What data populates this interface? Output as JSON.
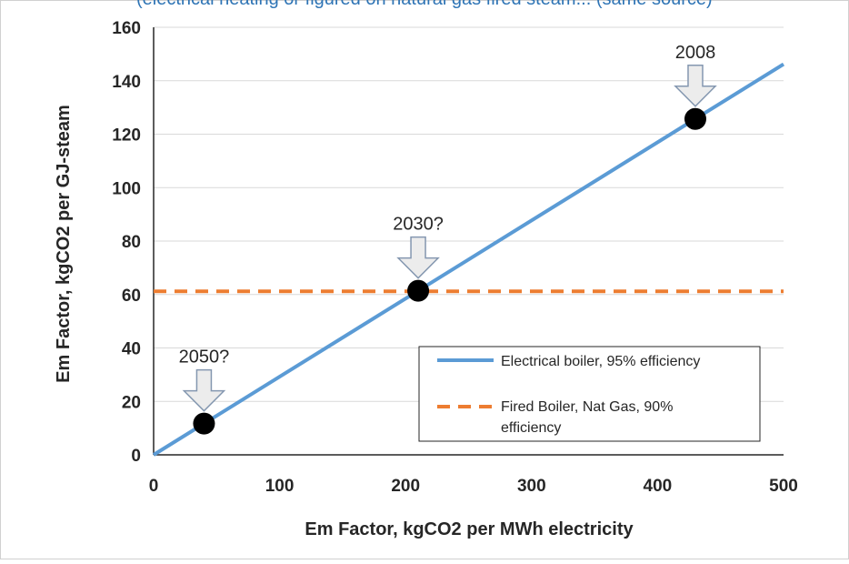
{
  "chart_data": {
    "type": "line",
    "xlabel": "Em Factor, kgCO2 per MWh electricity",
    "ylabel": "Em Factor, kgCO2 per GJ-steam",
    "xlim": [
      0,
      500
    ],
    "ylim": [
      0,
      160
    ],
    "x_ticks": [
      "0",
      "100",
      "200",
      "300",
      "400",
      "500"
    ],
    "y_ticks": [
      "0",
      "20",
      "40",
      "60",
      "80",
      "100",
      "120",
      "140",
      "160"
    ],
    "grid": "horizontal",
    "legend_position": "bottom-right",
    "series": [
      {
        "name": "Electrical boiler, 95% efficiency",
        "style": "solid",
        "color": "#5b9bd5",
        "x": [
          0,
          500
        ],
        "y": [
          0,
          146.2
        ]
      },
      {
        "name": "Fired Boiler, Nat Gas, 90% efficiency",
        "style": "dashed",
        "color": "#ed7d31",
        "x": [
          0,
          500
        ],
        "y": [
          61.2,
          61.2
        ]
      }
    ],
    "points": [
      {
        "label": "2008",
        "x": 430,
        "y": 125.7
      },
      {
        "label": "2030?",
        "x": 210,
        "y": 61.4
      },
      {
        "label": "2050?",
        "x": 40,
        "y": 11.7
      }
    ]
  },
  "header_caption": "(electrical heating or figured on natural gas fired steam... (same source)"
}
